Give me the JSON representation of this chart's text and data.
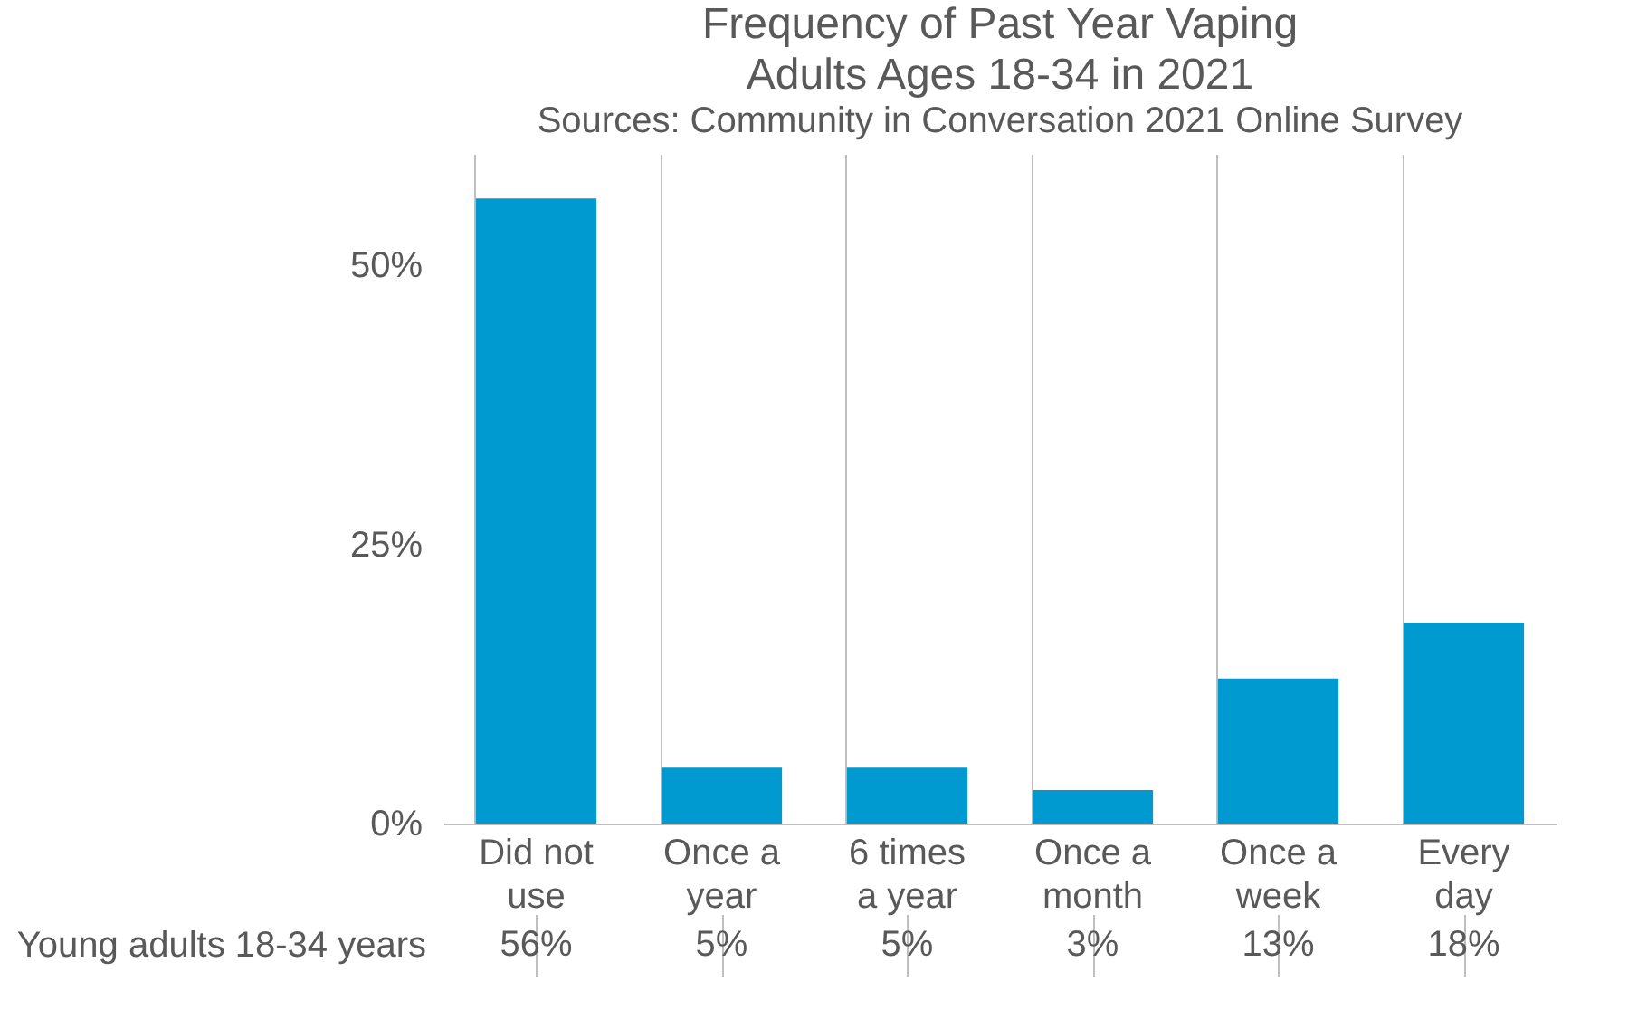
{
  "chart_data": {
    "type": "bar",
    "title": "Frequency of Past Year Vaping",
    "subtitle": "Adults Ages 18-34 in 2021",
    "annotations": [
      "Sources: Community in Conversation 2021 Online Survey"
    ],
    "categories": [
      "Did not use",
      "Once a year",
      "6 times a year",
      "Once a month",
      "Once a week",
      "Every day"
    ],
    "series": [
      {
        "name": "Young adults 18-34 years",
        "color": "#0099d0",
        "values": [
          56,
          5,
          5,
          3,
          13,
          18
        ],
        "value_labels": [
          "56%",
          "5%",
          "5%",
          "3%",
          "13%",
          "18%"
        ]
      }
    ],
    "ylim": [
      0,
      60
    ],
    "yticks": [
      {
        "value": 0,
        "label": "0%"
      },
      {
        "value": 25,
        "label": "25%"
      },
      {
        "value": 50,
        "label": "50%"
      }
    ]
  }
}
